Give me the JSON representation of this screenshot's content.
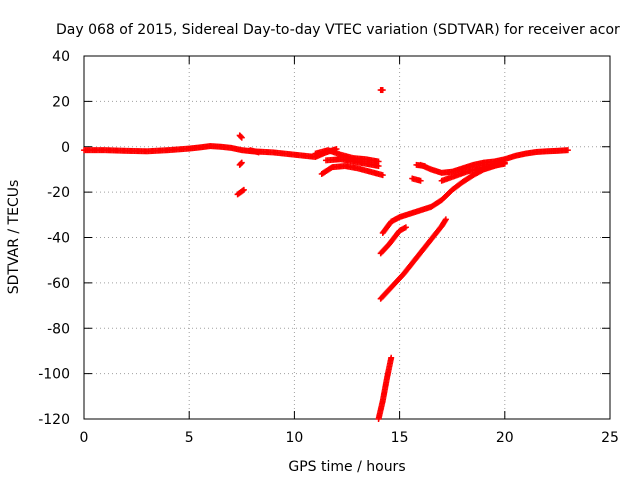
{
  "chart_data": {
    "type": "scatter",
    "title": "Day 068 of 2015, Sidereal Day-to-day VTEC variation (SDTVAR) for receiver acor",
    "xlabel": "GPS time / hours",
    "ylabel": "SDTVAR / TECUs",
    "xlim": [
      0,
      25
    ],
    "ylim": [
      -120,
      40
    ],
    "x_ticks": [
      "0",
      "5",
      "10",
      "15",
      "20",
      "25"
    ],
    "y_ticks": [
      "40",
      "20",
      "0",
      "-20",
      "-40",
      "-60",
      "-80",
      "-100",
      "-120"
    ],
    "grid": true,
    "marker": "plus",
    "color": "#ff0000",
    "series": [
      {
        "segments": [
          [
            [
              0.0,
              -1.5
            ],
            [
              1,
              -1.5
            ],
            [
              2,
              -1.8
            ],
            [
              3,
              -2.0
            ],
            [
              4,
              -1.5
            ],
            [
              5,
              -0.8
            ],
            [
              5.5,
              -0.3
            ],
            [
              6,
              0.3
            ],
            [
              6.5,
              0.0
            ],
            [
              7,
              -0.5
            ],
            [
              7.5,
              -1.5
            ],
            [
              8,
              -2.0
            ],
            [
              9,
              -2.5
            ],
            [
              10,
              -3.5
            ],
            [
              11,
              -4.5
            ],
            [
              11.5,
              -2.5
            ],
            [
              12,
              -1.0
            ]
          ],
          [
            [
              11.0,
              -3.0
            ],
            [
              11.6,
              -1.5
            ],
            [
              12.2,
              -3.5
            ],
            [
              12.8,
              -5.0
            ],
            [
              13.4,
              -5.5
            ],
            [
              14.0,
              -6.5
            ]
          ],
          [
            [
              11.5,
              -6.0
            ],
            [
              12.2,
              -5.5
            ],
            [
              12.8,
              -6.5
            ],
            [
              13.4,
              -7.5
            ],
            [
              14.0,
              -8.5
            ]
          ],
          [
            [
              11.3,
              -12.0
            ],
            [
              11.8,
              -9.0
            ],
            [
              12.4,
              -8.5
            ],
            [
              13.0,
              -9.5
            ],
            [
              13.6,
              -11.0
            ],
            [
              14.2,
              -12.5
            ]
          ]
        ]
      },
      {
        "segments": [
          [
            [
              7.4,
              5.0
            ],
            [
              7.5,
              4.0
            ]
          ],
          [
            [
              7.4,
              -8.0
            ],
            [
              7.5,
              -7.0
            ]
          ],
          [
            [
              7.3,
              -21.0
            ],
            [
              7.6,
              -19.0
            ]
          ],
          [
            [
              7.9,
              -1.5
            ],
            [
              8.3,
              -2.5
            ]
          ],
          [
            [
              14.1,
              25.0
            ],
            [
              14.2,
              25.0
            ]
          ],
          [
            [
              15.6,
              -14.0
            ],
            [
              16.0,
              -15.0
            ]
          ],
          [
            [
              15.8,
              -8.0
            ],
            [
              16.2,
              -8.5
            ]
          ]
        ]
      },
      {
        "segments": [
          [
            [
              16.0,
              -8.0
            ],
            [
              16.5,
              -10.0
            ],
            [
              17.0,
              -11.5
            ],
            [
              17.5,
              -11.0
            ],
            [
              18.0,
              -9.5
            ],
            [
              18.5,
              -8.0
            ],
            [
              19.0,
              -7.0
            ],
            [
              19.5,
              -6.5
            ],
            [
              20.0,
              -5.5
            ],
            [
              20.5,
              -4.0
            ],
            [
              21.0,
              -3.0
            ],
            [
              21.5,
              -2.3
            ],
            [
              22.0,
              -2.0
            ],
            [
              22.5,
              -1.8
            ],
            [
              23.0,
              -1.5
            ]
          ],
          [
            [
              14.2,
              -38.0
            ],
            [
              14.6,
              -33.0
            ],
            [
              15.0,
              -31.0
            ],
            [
              15.5,
              -29.5
            ],
            [
              16.0,
              -28.0
            ],
            [
              16.5,
              -26.5
            ],
            [
              17.0,
              -23.5
            ],
            [
              17.5,
              -19.0
            ],
            [
              18.0,
              -15.5
            ],
            [
              18.5,
              -12.5
            ],
            [
              19.0,
              -10.0
            ],
            [
              19.5,
              -8.5
            ],
            [
              20.0,
              -7.0
            ]
          ],
          [
            [
              14.1,
              -47.0
            ],
            [
              14.5,
              -43.0
            ],
            [
              15.0,
              -37.0
            ],
            [
              15.3,
              -35.5
            ]
          ],
          [
            [
              17.0,
              -15.0
            ],
            [
              17.6,
              -13.0
            ],
            [
              18.2,
              -11.0
            ],
            [
              18.8,
              -9.5
            ],
            [
              19.4,
              -8.5
            ],
            [
              20.0,
              -7.5
            ]
          ],
          [
            [
              14.1,
              -67.0
            ],
            [
              14.6,
              -62.0
            ],
            [
              15.2,
              -56.0
            ],
            [
              15.8,
              -49.0
            ],
            [
              16.4,
              -42.0
            ],
            [
              17.0,
              -35.0
            ],
            [
              17.2,
              -32.0
            ]
          ],
          [
            [
              14.0,
              -120.0
            ],
            [
              14.2,
              -112.0
            ],
            [
              14.4,
              -102.0
            ],
            [
              14.6,
              -93.0
            ]
          ]
        ]
      }
    ]
  }
}
